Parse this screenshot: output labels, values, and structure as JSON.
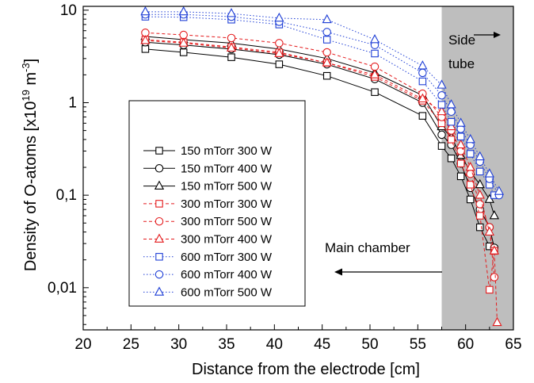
{
  "chart_data": {
    "type": "scatter",
    "xlabel": "Distance from the electrode [cm]",
    "ylabel_main": "Density of O-atoms [x10",
    "ylabel_exp1": "19",
    "ylabel_mid": " m",
    "ylabel_exp2": "-3",
    "ylabel_end": "]",
    "xlim": [
      20,
      65
    ],
    "ylim": [
      0.0035,
      11
    ],
    "y_scale": "log",
    "grid": false,
    "x_ticks": [
      20,
      25,
      30,
      35,
      40,
      45,
      50,
      55,
      60,
      65
    ],
    "y_ticks": [
      {
        "value": 0.01,
        "label": "0,01"
      },
      {
        "value": 0.1,
        "label": "0,1"
      },
      {
        "value": 1,
        "label": "1"
      },
      {
        "value": 10,
        "label": "10"
      }
    ],
    "shaded_region": {
      "x_from": 57.5,
      "x_to": 65,
      "color": "#bebebe"
    },
    "annotations": {
      "side_tube_line1": "Side",
      "side_tube_line2": "tube",
      "main_chamber": "Main chamber"
    },
    "legend_position": "center-left",
    "series": [
      {
        "name": "150 mTorr 300 W",
        "color": "#000000",
        "marker": "square",
        "dash": "solid",
        "x": [
          26.5,
          30.5,
          35.5,
          40.5,
          45.5,
          50.5,
          55.5,
          57.5,
          58.5,
          59.5,
          60.5,
          61.5,
          62.5,
          63
        ],
        "y": [
          3.8,
          3.5,
          3.1,
          2.6,
          1.95,
          1.3,
          0.72,
          0.34,
          0.25,
          0.16,
          0.09,
          0.045,
          0.028,
          0.026
        ]
      },
      {
        "name": "150 mTorr 400 W",
        "color": "#000000",
        "marker": "circle",
        "dash": "solid",
        "x": [
          26.5,
          30.5,
          35.5,
          40.5,
          45.5,
          50.5,
          55.5,
          57.5,
          58.5,
          59.5,
          60.5,
          61.5,
          62.5,
          63
        ],
        "y": [
          4.5,
          4.2,
          3.8,
          3.3,
          2.6,
          1.8,
          1.0,
          0.45,
          0.35,
          0.22,
          0.12,
          0.07,
          0.045,
          0.027
        ]
      },
      {
        "name": "150 mTorr 500 W",
        "color": "#000000",
        "marker": "triangle",
        "dash": "solid",
        "x": [
          26.5,
          30.5,
          35.5,
          40.5,
          45.5,
          50.5,
          55.5,
          57.5,
          58.5,
          59.5,
          60.5,
          61.5,
          62.5,
          63
        ],
        "y": [
          5.2,
          4.8,
          4.4,
          3.8,
          3.0,
          2.1,
          1.2,
          0.55,
          0.42,
          0.27,
          0.18,
          0.13,
          0.09,
          0.06
        ]
      },
      {
        "name": "300 mTorr 300 W",
        "color": "#e41a1c",
        "marker": "square",
        "dash": "dashed",
        "x": [
          26.5,
          30.5,
          35.5,
          40.5,
          45.5,
          50.5,
          55.5,
          57.5,
          58.5,
          59.5,
          60.5,
          61.5,
          62.5,
          63
        ],
        "y": [
          4.8,
          4.5,
          4.0,
          3.5,
          2.7,
          1.9,
          1.05,
          0.6,
          0.4,
          0.22,
          0.13,
          0.06,
          0.0095,
          0.025
        ]
      },
      {
        "name": "300 mTorr 500 W",
        "color": "#e41a1c",
        "marker": "circle",
        "dash": "dashed",
        "x": [
          26.5,
          30.5,
          35.5,
          40.5,
          45.5,
          50.5,
          55.5,
          57.5,
          58.5,
          59.5,
          60.5,
          61.5,
          62.5,
          63
        ],
        "y": [
          5.7,
          5.4,
          5.0,
          4.4,
          3.5,
          2.45,
          1.25,
          0.7,
          0.5,
          0.3,
          0.17,
          0.08,
          0.045,
          0.013
        ]
      },
      {
        "name": "300 mTorr 400 W",
        "color": "#e41a1c",
        "marker": "triangle",
        "dash": "dashed",
        "x": [
          26.5,
          30.5,
          35.5,
          40.5,
          45.5,
          50.5,
          55.5,
          57.5,
          58.5,
          59.5,
          60.5,
          61.5,
          62.5,
          63,
          63.3
        ],
        "y": [
          4.7,
          4.4,
          3.9,
          3.4,
          2.7,
          2.0,
          1.1,
          0.8,
          0.55,
          0.35,
          0.2,
          0.1,
          0.04,
          0.025,
          0.0042
        ]
      },
      {
        "name": "600 mTorr 300 W",
        "color": "#1f3fd6",
        "marker": "square",
        "dash": "dotted",
        "x": [
          26.5,
          30.5,
          35.5,
          40.5,
          45.5,
          50.5,
          55.5,
          57.5,
          58.5,
          59.5,
          60.5,
          61.5,
          62.5,
          63
        ],
        "y": [
          8.5,
          8.4,
          7.9,
          7.0,
          4.8,
          3.4,
          1.7,
          0.95,
          0.62,
          0.43,
          0.28,
          0.18,
          0.13,
          0.1
        ]
      },
      {
        "name": "600 mTorr 400 W",
        "color": "#1f3fd6",
        "marker": "circle",
        "dash": "dotted",
        "x": [
          26.5,
          30.5,
          35.5,
          40.5,
          45.5,
          50.5,
          55.5,
          57.5,
          58.5,
          59.5,
          60.5,
          61.5,
          62.5,
          63.5
        ],
        "y": [
          9.0,
          9.0,
          8.5,
          7.5,
          5.8,
          4.2,
          2.1,
          1.2,
          0.8,
          0.52,
          0.35,
          0.23,
          0.15,
          0.1
        ]
      },
      {
        "name": "600 mTorr 500 W",
        "color": "#1f3fd6",
        "marker": "triangle",
        "dash": "dotted",
        "x": [
          26.5,
          30.5,
          35.5,
          40.5,
          45.5,
          50.5,
          55.5,
          57.5,
          58.5,
          59.5,
          60.5,
          61.5,
          62.5,
          63.5
        ],
        "y": [
          9.6,
          9.6,
          9.2,
          8.2,
          7.9,
          4.8,
          2.5,
          1.55,
          0.95,
          0.6,
          0.4,
          0.26,
          0.17,
          0.11
        ]
      }
    ]
  }
}
